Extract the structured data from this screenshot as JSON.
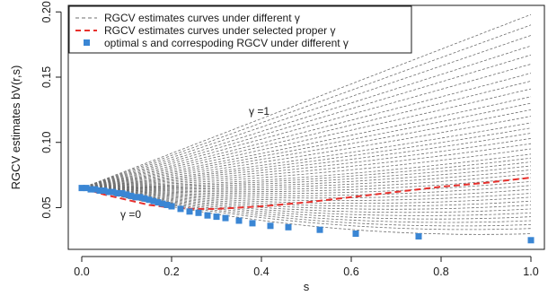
{
  "chart_data": {
    "type": "line",
    "title": "",
    "xlabel": "s",
    "ylabel": "RGCV estimates bV(r,s)",
    "xlim": [
      -0.03,
      1.03
    ],
    "ylim": [
      0.018,
      0.205
    ],
    "x_ticks": [
      0.0,
      0.2,
      0.4,
      0.6,
      0.8,
      1.0
    ],
    "x_tick_labels": [
      "0.0",
      "0.2",
      "0.4",
      "0.6",
      "0.8",
      "1.0"
    ],
    "y_ticks": [
      0.05,
      0.1,
      0.15,
      0.2
    ],
    "y_tick_labels": [
      "0.05",
      "0.10",
      "0.15",
      "0.20"
    ],
    "grid": false,
    "legend_position": "top-left",
    "legend": [
      {
        "label": "RGCV estimates curves under different γ",
        "style": "grey dashed line"
      },
      {
        "label": "RGCV estimates curves under selected proper γ",
        "style": "red dashed line"
      },
      {
        "label": "optimal s and correspoding RGCV under different γ",
        "style": "blue square points"
      }
    ],
    "annotations": [
      {
        "text": "γ =1",
        "x": 0.38,
        "y": 0.113
      },
      {
        "text": "γ =0",
        "x": 0.12,
        "y": 0.031
      }
    ],
    "colors": {
      "grey_curves": "#6e6e6e",
      "selected_curve": "#e8302c",
      "optimal_points": "#3a86d4"
    },
    "grey_curve_family": {
      "count": 40,
      "s_range": [
        0.0,
        1.0
      ],
      "start_value": 0.065,
      "end_values_at_s1": [
        0.03,
        0.034,
        0.037,
        0.04,
        0.043,
        0.046,
        0.049,
        0.052,
        0.055,
        0.058,
        0.061,
        0.064,
        0.067,
        0.07,
        0.073,
        0.076,
        0.079,
        0.082,
        0.085,
        0.088,
        0.091,
        0.095,
        0.099,
        0.103,
        0.107,
        0.111,
        0.115,
        0.12,
        0.125,
        0.13,
        0.135,
        0.141,
        0.147,
        0.153,
        0.16,
        0.167,
        0.174,
        0.182,
        0.19,
        0.198
      ]
    },
    "selected_curve": {
      "x": [
        0.0,
        0.05,
        0.1,
        0.15,
        0.2,
        0.25,
        0.3,
        0.35,
        0.4,
        0.5,
        0.6,
        0.7,
        0.8,
        0.9,
        1.0
      ],
      "y": [
        0.065,
        0.06,
        0.056,
        0.052,
        0.05,
        0.049,
        0.049,
        0.05,
        0.051,
        0.054,
        0.058,
        0.062,
        0.066,
        0.069,
        0.073
      ]
    },
    "optimal_points": {
      "x": [
        0.0,
        0.01,
        0.02,
        0.03,
        0.04,
        0.05,
        0.06,
        0.07,
        0.08,
        0.09,
        0.1,
        0.11,
        0.12,
        0.13,
        0.14,
        0.15,
        0.16,
        0.17,
        0.18,
        0.19,
        0.2,
        0.22,
        0.24,
        0.26,
        0.28,
        0.3,
        0.32,
        0.35,
        0.38,
        0.42,
        0.46,
        0.53,
        0.61,
        0.75,
        1.0
      ],
      "y": [
        0.065,
        0.065,
        0.064,
        0.064,
        0.063,
        0.063,
        0.062,
        0.062,
        0.061,
        0.061,
        0.06,
        0.059,
        0.058,
        0.058,
        0.057,
        0.056,
        0.055,
        0.054,
        0.053,
        0.052,
        0.051,
        0.049,
        0.047,
        0.046,
        0.044,
        0.043,
        0.042,
        0.04,
        0.038,
        0.036,
        0.035,
        0.033,
        0.03,
        0.028,
        0.025
      ]
    }
  }
}
